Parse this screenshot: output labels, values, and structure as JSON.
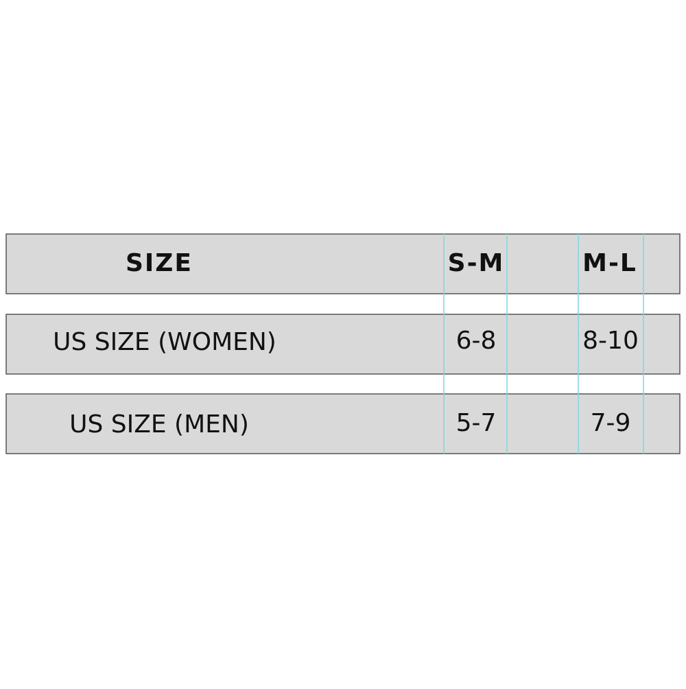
{
  "table": {
    "header": [
      "SIZE",
      "S-M",
      "M-L"
    ],
    "rows": [
      [
        "US SIZE (WOMEN)",
        "6-8",
        "8-10"
      ],
      [
        "US SIZE (MEN)",
        "5-7",
        "7-9"
      ]
    ]
  }
}
